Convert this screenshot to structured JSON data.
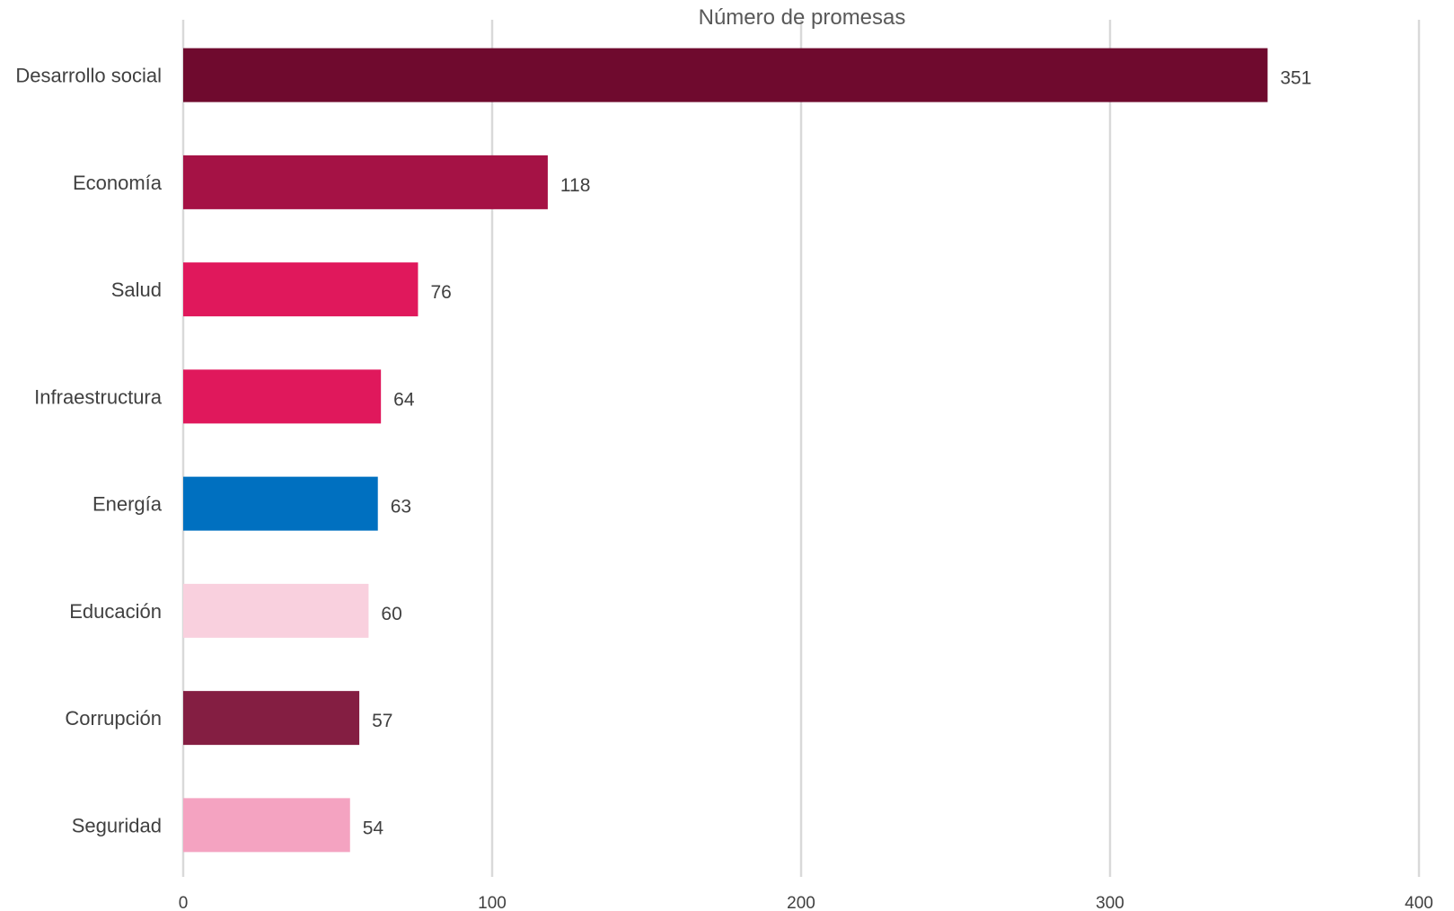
{
  "chart_data": {
    "type": "bar",
    "orientation": "horizontal",
    "title": "",
    "xlabel": "Número de promesas",
    "ylabel": "",
    "xlabel_position": "top",
    "xlim": [
      0,
      400
    ],
    "x_ticks": [
      0,
      100,
      200,
      300,
      400
    ],
    "x_tick_labels": [
      "0",
      "100",
      "200",
      "300",
      "400"
    ],
    "grid": "vertical",
    "legend": "none",
    "categories": [
      "Desarrollo social",
      "Economía",
      "Salud",
      "Infraestructura",
      "Energía",
      "Educación",
      "Corrupción",
      "Seguridad"
    ],
    "values": [
      351,
      118,
      76,
      64,
      63,
      60,
      57,
      54
    ],
    "value_labels": [
      "351",
      "118",
      "76",
      "64",
      "63",
      "60",
      "57",
      "54"
    ],
    "bar_colors": [
      "#6f0a2e",
      "#a51245",
      "#e0185c",
      "#e0185c",
      "#0070c0",
      "#f9d0de",
      "#841e42",
      "#f4a3c1"
    ]
  }
}
